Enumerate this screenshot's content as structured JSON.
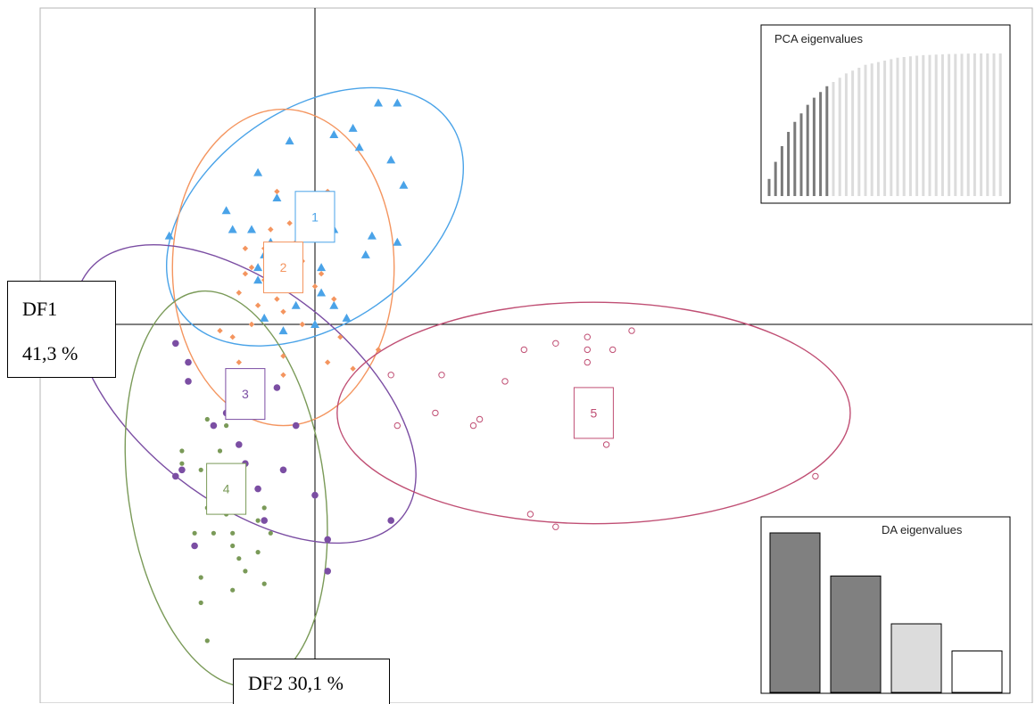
{
  "chart_data": {
    "type": "scatter",
    "title": "",
    "xlabel": "",
    "ylabel": "",
    "xlim": [
      -4,
      10
    ],
    "ylim": [
      -5,
      4.5
    ],
    "axes": {
      "df1": {
        "name": "DF1",
        "percent": "41,3 %"
      },
      "df2": {
        "label": "DF2 30,1 %"
      }
    },
    "groups": [
      {
        "label": "1",
        "color": "#4aa3e8",
        "shape": "triangle",
        "center": [
          0,
          1.7
        ],
        "ellipse": {
          "rx": 2.6,
          "ry": 1.7,
          "rotate": -35
        },
        "points": [
          [
            1.0,
            3.5
          ],
          [
            1.3,
            3.5
          ],
          [
            0.6,
            3.1
          ],
          [
            0.7,
            2.8
          ],
          [
            0.3,
            3.0
          ],
          [
            -0.4,
            2.9
          ],
          [
            1.2,
            2.6
          ],
          [
            1.4,
            2.2
          ],
          [
            -0.9,
            2.4
          ],
          [
            -0.6,
            2.0
          ],
          [
            -1.4,
            1.8
          ],
          [
            -1.0,
            1.5
          ],
          [
            0.3,
            1.5
          ],
          [
            0.9,
            1.4
          ],
          [
            0.8,
            1.1
          ],
          [
            1.3,
            1.3
          ],
          [
            -1.3,
            1.5
          ],
          [
            -2.3,
            1.4
          ],
          [
            -0.8,
            1.1
          ],
          [
            -0.4,
            1.2
          ],
          [
            0.1,
            0.9
          ],
          [
            -0.9,
            0.7
          ],
          [
            0.1,
            0.5
          ],
          [
            -0.3,
            0.3
          ],
          [
            0.3,
            0.3
          ],
          [
            -0.8,
            0.1
          ],
          [
            -0.5,
            -0.1
          ],
          [
            0.0,
            0.0
          ],
          [
            0.5,
            0.1
          ],
          [
            -0.9,
            0.9
          ],
          [
            -0.7,
            1.3
          ],
          [
            0.0,
            1.6
          ]
        ]
      },
      {
        "label": "2",
        "color": "#f4955f",
        "shape": "diamond",
        "center": [
          -0.5,
          0.9
        ],
        "ellipse": {
          "rx": 1.75,
          "ry": 2.5,
          "rotate": 0
        },
        "points": [
          [
            0.2,
            2.1
          ],
          [
            -0.6,
            2.1
          ],
          [
            -0.4,
            1.6
          ],
          [
            -0.3,
            1.3
          ],
          [
            0.1,
            1.4
          ],
          [
            -0.8,
            1.2
          ],
          [
            -1.1,
            1.2
          ],
          [
            -0.2,
            1.0
          ],
          [
            -1.0,
            0.9
          ],
          [
            0.1,
            0.8
          ],
          [
            -0.8,
            0.7
          ],
          [
            0.0,
            0.6
          ],
          [
            -1.2,
            0.5
          ],
          [
            -0.6,
            0.4
          ],
          [
            0.3,
            0.4
          ],
          [
            -0.5,
            0.2
          ],
          [
            -0.9,
            0.3
          ],
          [
            -0.2,
            0.0
          ],
          [
            -1.0,
            0.0
          ],
          [
            -1.5,
            -0.1
          ],
          [
            -1.3,
            -0.2
          ],
          [
            0.4,
            -0.2
          ],
          [
            -0.5,
            -0.5
          ],
          [
            0.2,
            -0.6
          ],
          [
            -0.5,
            -0.8
          ],
          [
            0.6,
            -0.7
          ],
          [
            1.0,
            -0.4
          ],
          [
            -1.2,
            -0.6
          ],
          [
            -1.1,
            0.8
          ],
          [
            -0.7,
            1.5
          ]
        ]
      },
      {
        "label": "3",
        "color": "#7b4ea3",
        "shape": "circle",
        "center": [
          -1.1,
          -1.1
        ],
        "ellipse": {
          "rx": 3.15,
          "ry": 1.7,
          "rotate": 38
        },
        "points": [
          [
            -2.2,
            -0.3
          ],
          [
            -2.0,
            -0.6
          ],
          [
            -2.0,
            -0.9
          ],
          [
            -1.3,
            -0.9
          ],
          [
            -1.0,
            -0.8
          ],
          [
            -0.6,
            -1.0
          ],
          [
            -1.4,
            -1.4
          ],
          [
            -1.6,
            -1.6
          ],
          [
            -0.3,
            -1.6
          ],
          [
            -1.2,
            -1.9
          ],
          [
            -2.1,
            -2.3
          ],
          [
            -2.2,
            -2.4
          ],
          [
            -1.1,
            -2.2
          ],
          [
            -0.9,
            -2.6
          ],
          [
            -1.2,
            -2.9
          ],
          [
            -0.8,
            -3.1
          ],
          [
            0.0,
            -2.7
          ],
          [
            0.2,
            -3.4
          ],
          [
            1.2,
            -3.1
          ],
          [
            -1.9,
            -3.5
          ],
          [
            0.2,
            -3.9
          ],
          [
            -0.5,
            -2.3
          ],
          [
            -1.5,
            -2.9
          ]
        ]
      },
      {
        "label": "4",
        "color": "#7a9a58",
        "shape": "circle",
        "center": [
          -1.4,
          -2.6
        ],
        "ellipse": {
          "rx": 1.55,
          "ry": 3.15,
          "rotate": -8
        },
        "points": [
          [
            -1.7,
            -1.5
          ],
          [
            -1.4,
            -1.6
          ],
          [
            -2.1,
            -2.0
          ],
          [
            -1.5,
            -2.0
          ],
          [
            -1.8,
            -2.3
          ],
          [
            -2.1,
            -2.2
          ],
          [
            -1.6,
            -2.6
          ],
          [
            -1.7,
            -2.9
          ],
          [
            -1.4,
            -2.5
          ],
          [
            -1.4,
            -3.0
          ],
          [
            -0.9,
            -3.1
          ],
          [
            -0.9,
            -3.6
          ],
          [
            -0.8,
            -2.9
          ],
          [
            -0.7,
            -3.3
          ],
          [
            -1.3,
            -3.3
          ],
          [
            -1.6,
            -3.3
          ],
          [
            -1.9,
            -3.3
          ],
          [
            -1.2,
            -3.7
          ],
          [
            -1.1,
            -3.9
          ],
          [
            -1.3,
            -3.5
          ],
          [
            -0.8,
            -4.1
          ],
          [
            -1.3,
            -4.2
          ],
          [
            -1.8,
            -4.0
          ],
          [
            -1.8,
            -4.4
          ],
          [
            -1.7,
            -5.0
          ]
        ]
      },
      {
        "label": "5",
        "color": "#c04f74",
        "shape": "open-circle",
        "center": [
          4.4,
          -1.4
        ],
        "ellipse": {
          "rx": 4.05,
          "ry": 1.75,
          "rotate": 0
        },
        "points": [
          [
            2.6,
            -1.5
          ],
          [
            2.5,
            -1.6
          ],
          [
            3.0,
            -0.9
          ],
          [
            3.3,
            -0.4
          ],
          [
            4.3,
            -0.4
          ],
          [
            4.3,
            -0.6
          ],
          [
            4.7,
            -0.4
          ],
          [
            3.8,
            -0.3
          ],
          [
            4.3,
            -0.2
          ],
          [
            5.0,
            -0.1
          ],
          [
            2.0,
            -0.8
          ],
          [
            1.9,
            -1.4
          ],
          [
            1.2,
            -0.8
          ],
          [
            1.3,
            -1.6
          ],
          [
            3.4,
            -3.0
          ],
          [
            3.8,
            -3.2
          ],
          [
            4.6,
            -1.9
          ],
          [
            7.9,
            -2.4
          ]
        ]
      }
    ],
    "insets": {
      "pca": {
        "title": "PCA eigenvalues",
        "values": [
          0.12,
          0.24,
          0.35,
          0.45,
          0.52,
          0.58,
          0.64,
          0.69,
          0.73,
          0.77,
          0.8,
          0.83,
          0.86,
          0.88,
          0.9,
          0.92,
          0.93,
          0.94,
          0.95,
          0.96,
          0.97,
          0.975,
          0.98,
          0.984,
          0.988,
          0.99,
          0.992,
          0.994,
          0.996,
          0.997,
          0.998,
          0.999,
          1.0,
          1.0,
          1.0,
          1.0,
          1.0
        ],
        "retained": 10,
        "retained_color": "#7a7a7a",
        "other_color": "#dcdcdc"
      },
      "da": {
        "title": "DA eigenvalues",
        "values": [
          1.0,
          0.73,
          0.43,
          0.26
        ],
        "colors": [
          "#808080",
          "#808080",
          "#dcdcdc",
          "#ffffff"
        ]
      }
    }
  }
}
